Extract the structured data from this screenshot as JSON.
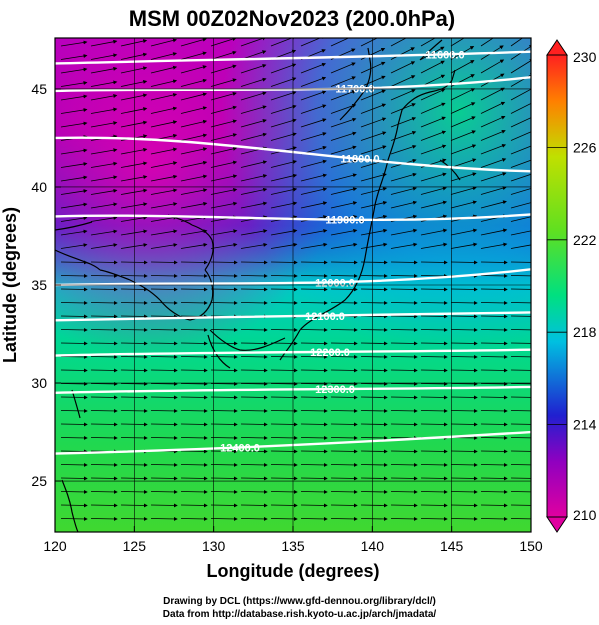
{
  "title": "MSM 00Z02Nov2023 (200.0hPa)",
  "xlabel": "Longitude (degrees)",
  "ylabel": "Latitude (degrees)",
  "credits": {
    "line1": "Drawing by DCL (https://www.gfd-dennou.org/library/dcl/)",
    "line2": "Data from http://database.rish.kyoto-u.ac.jp/arch/jmadata/"
  },
  "chart_data": {
    "type": "heatmap",
    "title": "MSM 00Z02Nov2023 (200.0hPa)",
    "xlabel": "Longitude (degrees)",
    "ylabel": "Latitude (degrees)",
    "xlim": [
      120,
      150
    ],
    "ylim": [
      22.4,
      47.6
    ],
    "x_ticks": [
      120,
      125,
      130,
      135,
      140,
      145,
      150
    ],
    "y_ticks": [
      25,
      30,
      35,
      40,
      45
    ],
    "colorbar": {
      "range": [
        210,
        230
      ],
      "ticks": [
        210,
        214,
        218,
        222,
        226,
        230
      ],
      "colors": [
        "#e000a0",
        "#9000c0",
        "#2020d0",
        "#00c0e0",
        "#00e080",
        "#60e020",
        "#c0e000",
        "#ff8000",
        "#ff2020"
      ]
    },
    "contour_levels": [
      {
        "label": "11600.0",
        "lat_at_120": 46.3,
        "lat_at_150": 46.9
      },
      {
        "label": "11700.0",
        "lat_at_120": 44.9,
        "lat_at_150": 45.6
      },
      {
        "label": "11800.0",
        "lat_at_120": 42.5,
        "lat_at_150": 40.8
      },
      {
        "label": "11900.0",
        "lat_at_120": 38.5,
        "lat_at_150": 38.6
      },
      {
        "label": "12000.0",
        "lat_at_120": 35.0,
        "lat_at_150": 35.8
      },
      {
        "label": "12100.0",
        "lat_at_120": 33.2,
        "lat_at_150": 33.6
      },
      {
        "label": "12200.0",
        "lat_at_120": 31.4,
        "lat_at_150": 31.7
      },
      {
        "label": "12300.0",
        "lat_at_120": 29.5,
        "lat_at_150": 29.8
      },
      {
        "label": "12400.0",
        "lat_at_120": 26.4,
        "lat_at_150": 27.5
      }
    ],
    "wind": "westerly, turning northeastward north of 38N"
  }
}
